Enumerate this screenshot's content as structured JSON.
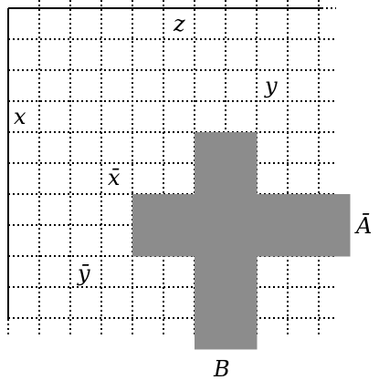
{
  "diagram": {
    "labels": {
      "x": "x",
      "y": "y",
      "z": "z",
      "x_bar": "x̄",
      "y_bar": "ȳ",
      "a_bar": "Ā",
      "b": "B"
    },
    "colors": {
      "shape_fill": "#8c8c8c",
      "grid": "#000000",
      "border": "#000000"
    },
    "shape_cells": [
      [
        6,
        4
      ],
      [
        7,
        4
      ],
      [
        6,
        5
      ],
      [
        7,
        5
      ],
      [
        4,
        6
      ],
      [
        5,
        6
      ],
      [
        6,
        6
      ],
      [
        7,
        6
      ],
      [
        8,
        6
      ],
      [
        9,
        6
      ],
      [
        10,
        6
      ],
      [
        4,
        7
      ],
      [
        5,
        7
      ],
      [
        6,
        7
      ],
      [
        7,
        7
      ],
      [
        8,
        7
      ],
      [
        9,
        7
      ],
      [
        10,
        7
      ],
      [
        6,
        8
      ],
      [
        7,
        8
      ],
      [
        6,
        9
      ],
      [
        7,
        9
      ],
      [
        6,
        10
      ],
      [
        7,
        10
      ]
    ]
  }
}
